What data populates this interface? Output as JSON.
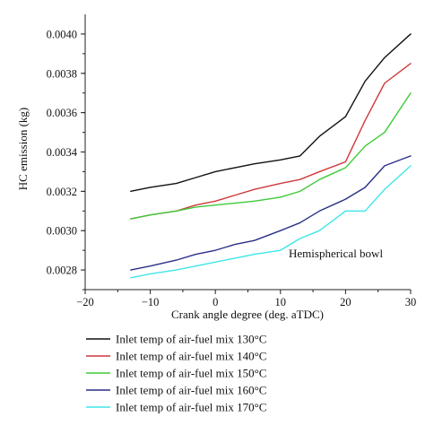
{
  "chart_data": {
    "type": "line",
    "xlabel": "Crank angle degree (deg. aTDC)",
    "ylabel": "HC emission (kg)",
    "xlim": [
      -20,
      30
    ],
    "ylim": [
      0.0027,
      0.0041
    ],
    "xticks": [
      -20,
      -10,
      0,
      10,
      20,
      30
    ],
    "xtick_labels": [
      "−20",
      "−10",
      "0",
      "10",
      "20",
      "30"
    ],
    "yticks": [
      0.0028,
      0.003,
      0.0032,
      0.0034,
      0.0036,
      0.0038,
      0.004
    ],
    "ytick_labels": [
      "0.0028",
      "0.0030",
      "0.0032",
      "0.0034",
      "0.0036",
      "0.0038",
      "0.0040"
    ],
    "annotation": "Hemispherical bowl",
    "legend_position": "below",
    "grid": false,
    "series": [
      {
        "name": "Inlet temp of air-fuel mix 130°C",
        "color": "#111111",
        "x": [
          -13,
          -10,
          -6,
          -3,
          0,
          3,
          6,
          10,
          13,
          16,
          20,
          23,
          26,
          30
        ],
        "y": [
          0.0032,
          0.00322,
          0.00324,
          0.00327,
          0.0033,
          0.00332,
          0.00334,
          0.00336,
          0.00338,
          0.00348,
          0.00358,
          0.00376,
          0.00388,
          0.004
        ]
      },
      {
        "name": "Inlet temp of air-fuel mix 140°C",
        "color": "#d0393c",
        "x": [
          -13,
          -10,
          -6,
          -3,
          0,
          3,
          6,
          10,
          13,
          16,
          20,
          23,
          26,
          30
        ],
        "y": [
          0.00306,
          0.00308,
          0.0031,
          0.00313,
          0.00315,
          0.00318,
          0.00321,
          0.00324,
          0.00326,
          0.0033,
          0.00335,
          0.00356,
          0.00375,
          0.00385
        ]
      },
      {
        "name": "Inlet temp of air-fuel mix 150°C",
        "color": "#3ecb3a",
        "x": [
          -13,
          -10,
          -6,
          -3,
          0,
          3,
          6,
          10,
          13,
          16,
          20,
          23,
          26,
          30
        ],
        "y": [
          0.00306,
          0.00308,
          0.0031,
          0.00312,
          0.00313,
          0.00314,
          0.00315,
          0.00317,
          0.0032,
          0.00326,
          0.00332,
          0.00343,
          0.0035,
          0.0037
        ]
      },
      {
        "name": "Inlet temp of air-fuel mix 160°C",
        "color": "#2a2f86",
        "x": [
          -13,
          -10,
          -6,
          -3,
          0,
          3,
          6,
          10,
          13,
          16,
          20,
          23,
          26,
          30
        ],
        "y": [
          0.0028,
          0.00282,
          0.00285,
          0.00288,
          0.0029,
          0.00293,
          0.00295,
          0.003,
          0.00304,
          0.0031,
          0.00316,
          0.00322,
          0.00333,
          0.00338
        ]
      },
      {
        "name": "Inlet temp of air-fuel mix 170°C",
        "color": "#3ee6ea",
        "x": [
          -13,
          -10,
          -6,
          -3,
          0,
          3,
          6,
          10,
          13,
          16,
          20,
          23,
          26,
          30
        ],
        "y": [
          0.00276,
          0.00278,
          0.0028,
          0.00282,
          0.00284,
          0.00286,
          0.00288,
          0.0029,
          0.00296,
          0.003,
          0.0031,
          0.0031,
          0.00321,
          0.00333
        ]
      }
    ]
  }
}
